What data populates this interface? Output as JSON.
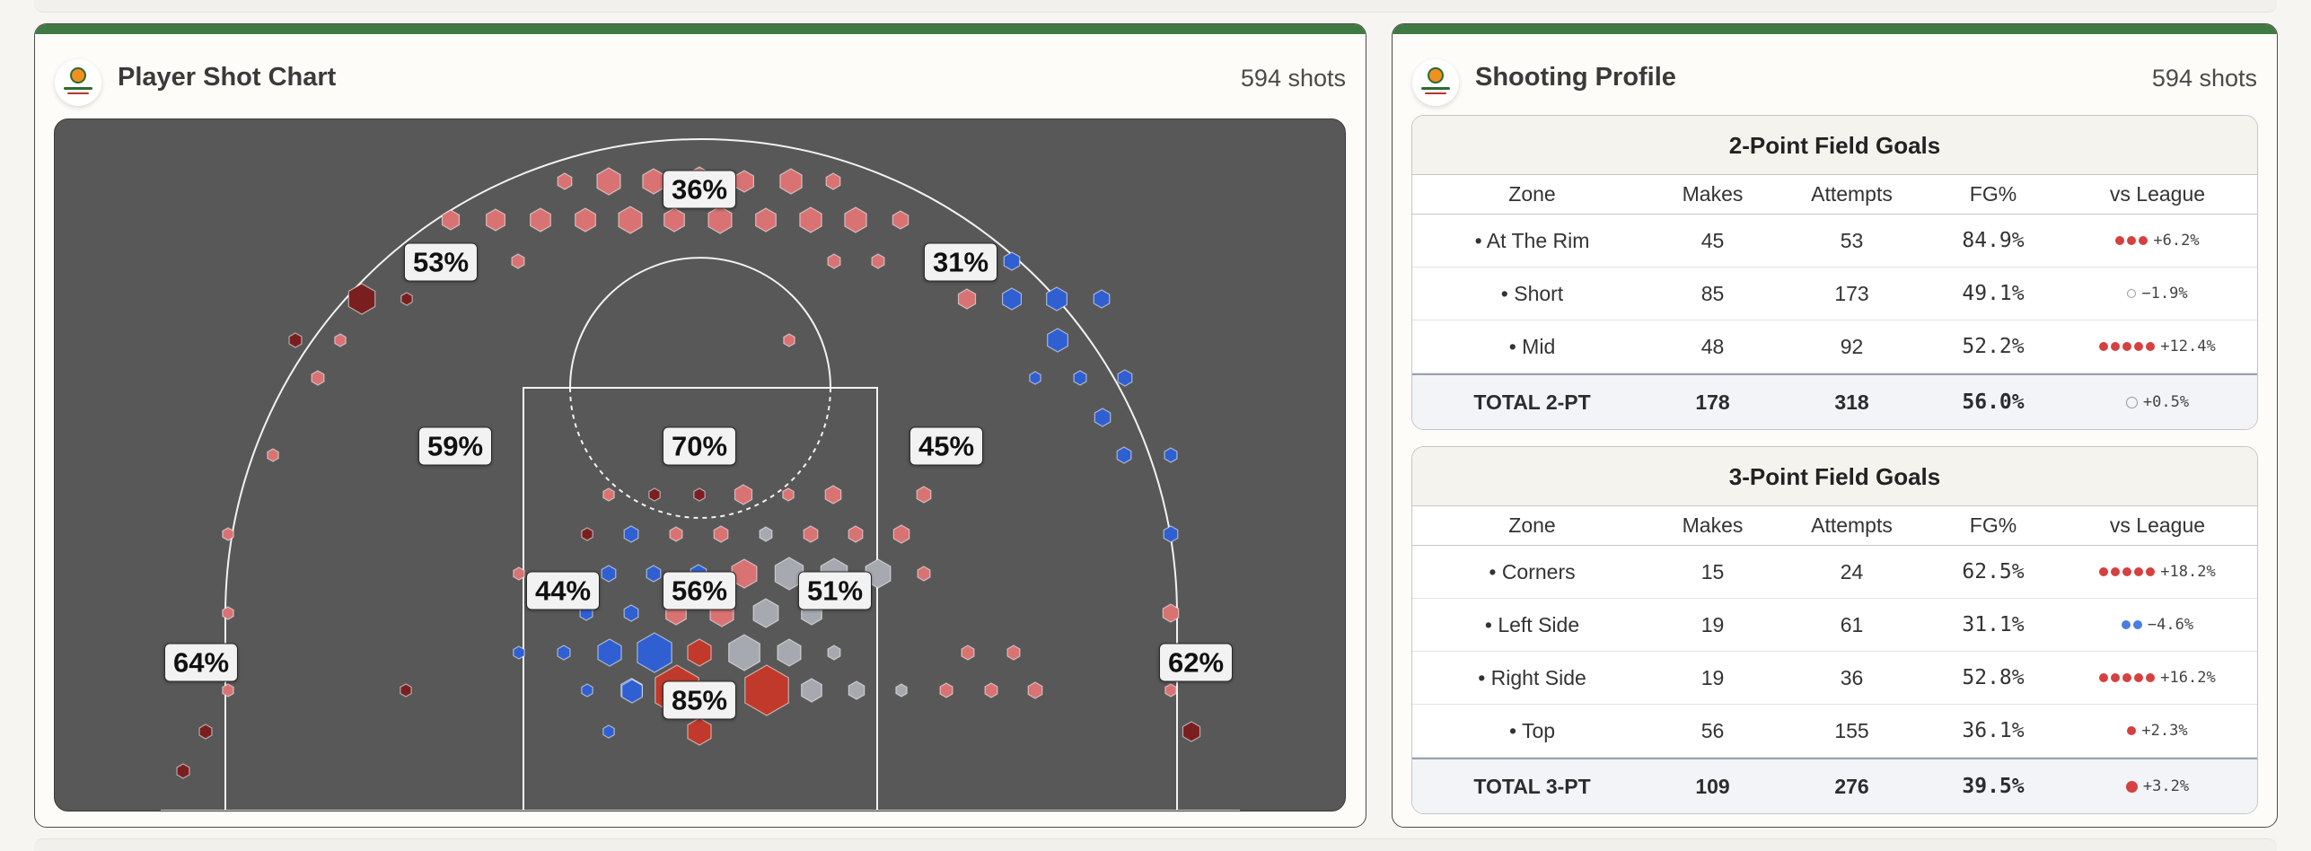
{
  "colors": {
    "accent": "#3f7a43",
    "court_bg": "#585858",
    "hot": "#c0392b",
    "cold": "#2f5fd0",
    "neutral": "#a7a9b1"
  },
  "shot_chart": {
    "title": "Player Shot Chart",
    "count": "594 shots",
    "logo_icon": "team-logo-icon",
    "zone_labels": [
      "36%",
      "53%",
      "31%",
      "59%",
      "70%",
      "45%",
      "44%",
      "56%",
      "51%",
      "64%",
      "62%",
      "85%"
    ]
  },
  "shooting_profile": {
    "title": "Shooting Profile",
    "count": "594 shots",
    "columns": {
      "zone": "Zone",
      "makes": "Makes",
      "attempts": "Attempts",
      "fg": "FG%",
      "vs": "vs League"
    },
    "two_point": {
      "title": "2-Point Field Goals",
      "rows": [
        {
          "zone": "• At The Rim",
          "makes": "45",
          "attempts": "53",
          "fg": "84.9%",
          "vs": "+6.2%",
          "dots": 3,
          "color": "#d64040"
        },
        {
          "zone": "• Short",
          "makes": "85",
          "attempts": "173",
          "fg": "49.1%",
          "vs": "−1.9%",
          "dots": 0,
          "color": "#999999"
        },
        {
          "zone": "• Mid",
          "makes": "48",
          "attempts": "92",
          "fg": "52.2%",
          "vs": "+12.4%",
          "dots": 5,
          "color": "#d64040"
        }
      ],
      "total": {
        "zone": "TOTAL 2-PT",
        "makes": "178",
        "attempts": "318",
        "fg": "56.0%",
        "vs": "+0.5%",
        "dots": 0,
        "color": "#999999"
      }
    },
    "three_point": {
      "title": "3-Point Field Goals",
      "rows": [
        {
          "zone": "• Corners",
          "makes": "15",
          "attempts": "24",
          "fg": "62.5%",
          "vs": "+18.2%",
          "dots": 5,
          "color": "#d64040"
        },
        {
          "zone": "• Left Side",
          "makes": "19",
          "attempts": "61",
          "fg": "31.1%",
          "vs": "−4.6%",
          "dots": 2,
          "color": "#4a7fe0"
        },
        {
          "zone": "• Right Side",
          "makes": "19",
          "attempts": "36",
          "fg": "52.8%",
          "vs": "+16.2%",
          "dots": 5,
          "color": "#d64040"
        },
        {
          "zone": "• Top",
          "makes": "56",
          "attempts": "155",
          "fg": "36.1%",
          "vs": "+2.3%",
          "dots": 1,
          "color": "#d64040"
        }
      ],
      "total": {
        "zone": "TOTAL 3-PT",
        "makes": "109",
        "attempts": "276",
        "fg": "39.5%",
        "vs": "+3.2%",
        "dots": 1,
        "color": "#d64040"
      }
    }
  }
}
